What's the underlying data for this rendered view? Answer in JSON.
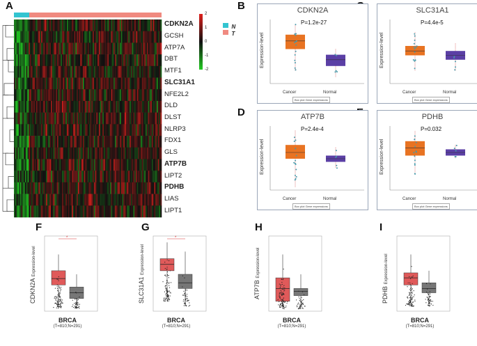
{
  "panel_letters": [
    "A",
    "B",
    "C",
    "D",
    "E",
    "F",
    "G",
    "H",
    "I"
  ],
  "heatmap": {
    "genes": [
      {
        "label": "CDKN2A",
        "bold": true
      },
      {
        "label": "GCSH",
        "bold": false
      },
      {
        "label": "ATP7A",
        "bold": false
      },
      {
        "label": "DBT",
        "bold": false
      },
      {
        "label": "MTF1",
        "bold": false
      },
      {
        "label": "SLC31A1",
        "bold": true
      },
      {
        "label": "NFE2L2",
        "bold": false
      },
      {
        "label": "DLD",
        "bold": false
      },
      {
        "label": "DLST",
        "bold": false
      },
      {
        "label": "NLRP3",
        "bold": false
      },
      {
        "label": "FDX1",
        "bold": false
      },
      {
        "label": "GLS",
        "bold": false
      },
      {
        "label": "ATP7B",
        "bold": true
      },
      {
        "label": "LIPT2",
        "bold": false
      },
      {
        "label": "PDHB",
        "bold": true
      },
      {
        "label": "LIAS",
        "bold": false
      },
      {
        "label": "LIPT1",
        "bold": false
      }
    ],
    "scale_ticks": [
      "2",
      "1",
      "0",
      "-1",
      "-2"
    ],
    "legend": [
      {
        "label": "N",
        "color": "#33c4d0"
      },
      {
        "label": "T",
        "color": "#f08a80"
      }
    ],
    "colors": {
      "high": "#e0201c",
      "mid": "#111111",
      "low": "#22cc22"
    }
  },
  "gepia_panels": [
    {
      "gene": "CDKN2A",
      "p": "P=1.2e-27",
      "ylabel": "Expression-level",
      "x": [
        "Cancer",
        "Normal"
      ],
      "legend": "Box plot   Gene expressions"
    },
    {
      "gene": "SLC31A1",
      "p": "P=4.4e-5",
      "ylabel": "Expression-level",
      "x": [
        "Cancer",
        "Normal"
      ],
      "legend": "Box plot   Gene expressions"
    },
    {
      "gene": "ATP7B",
      "p": "P=2.4e-4",
      "ylabel": "Expression-level",
      "x": [
        "Cancer",
        "Normal"
      ],
      "legend": "Box plot   Gene expressions"
    },
    {
      "gene": "PDHB",
      "p": "P=0.032",
      "ylabel": "Expression-level",
      "x": [
        "Cancer",
        "Normal"
      ],
      "legend": "Box plot   Gene expressions"
    }
  ],
  "bottom_panels": [
    {
      "gene": "CDKN2A",
      "ylabel_small": "Expression-level",
      "title": "BRCA",
      "sub": "(T=810;N=291)",
      "sig": true
    },
    {
      "gene": "SLC31A1",
      "ylabel_small": "Expression-level",
      "title": "BRCA",
      "sub": "(T=810;N=291)",
      "sig": true
    },
    {
      "gene": "ATP7B",
      "ylabel_small": "Expression-level",
      "title": "BRCA",
      "sub": "(T=810;N=291)",
      "sig": false
    },
    {
      "gene": "PDHB",
      "ylabel_small": "Expression-level",
      "title": "BRCA",
      "sub": "(T=810;N=291)",
      "sig": false
    }
  ],
  "box_colors": {
    "cancer": "#e87322",
    "normal": "#5b3fa5",
    "bottom_tumor": "#e05a5a",
    "bottom_normal": "#777777"
  }
}
